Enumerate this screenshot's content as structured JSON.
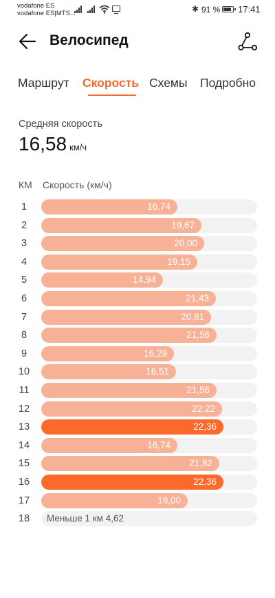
{
  "status_bar": {
    "carrier_1": "vodafone ES",
    "carrier_2": "vodafone ES|MTS...",
    "battery_percent": "91 %",
    "time": "17:41",
    "icons": [
      "signal-icon",
      "wifi-icon",
      "screen-cast-icon",
      "bluetooth-icon",
      "battery-icon"
    ]
  },
  "header": {
    "title": "Велосипед",
    "back_icon": "arrow-left-icon",
    "share_icon": "route-share-icon"
  },
  "tabs": [
    {
      "label": "Маршрут",
      "active": false
    },
    {
      "label": "Скорость",
      "active": true
    },
    {
      "label": "Схемы",
      "active": false
    },
    {
      "label": "Подробно",
      "active": false
    }
  ],
  "summary": {
    "label": "Средняя скорость",
    "value": "16,58",
    "unit": "км/ч"
  },
  "table": {
    "col_km": "КМ",
    "col_speed": "Скорость (км/ч)"
  },
  "accent_color": "#f26a2b",
  "bar_color": "#f6b196",
  "highlight_color": "#fb6a2a",
  "bar_scale_max": 26.5,
  "splits": [
    {
      "km": "1",
      "speed": 16.74,
      "label": "16,74"
    },
    {
      "km": "2",
      "speed": 19.67,
      "label": "19,67"
    },
    {
      "km": "3",
      "speed": 20.0,
      "label": "20,00"
    },
    {
      "km": "4",
      "speed": 19.15,
      "label": "19,15"
    },
    {
      "km": "5",
      "speed": 14.94,
      "label": "14,94"
    },
    {
      "km": "6",
      "speed": 21.43,
      "label": "21,43"
    },
    {
      "km": "7",
      "speed": 20.81,
      "label": "20,81"
    },
    {
      "km": "8",
      "speed": 21.56,
      "label": "21,56"
    },
    {
      "km": "9",
      "speed": 16.29,
      "label": "16,29"
    },
    {
      "km": "10",
      "speed": 16.51,
      "label": "16,51"
    },
    {
      "km": "11",
      "speed": 21.56,
      "label": "21,56"
    },
    {
      "km": "12",
      "speed": 22.22,
      "label": "22,22"
    },
    {
      "km": "13",
      "speed": 22.36,
      "label": "22,36",
      "highlight": true
    },
    {
      "km": "14",
      "speed": 16.74,
      "label": "16,74"
    },
    {
      "km": "15",
      "speed": 21.82,
      "label": "21,82"
    },
    {
      "km": "16",
      "speed": 22.36,
      "label": "22,36",
      "highlight": true
    },
    {
      "km": "17",
      "speed": 18.0,
      "label": "18,00"
    }
  ],
  "last_split": {
    "km": "18",
    "label": "Меньше 1 км 4,62"
  }
}
